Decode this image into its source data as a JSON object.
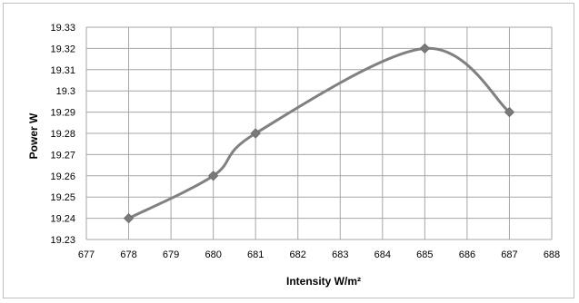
{
  "chart_data": {
    "type": "line",
    "title": "",
    "xlabel": "Intensity W/m²",
    "ylabel": "Power W",
    "xlim": [
      677,
      688
    ],
    "ylim": [
      19.23,
      19.33
    ],
    "x_ticks": [
      "677",
      "678",
      "679",
      "680",
      "681",
      "682",
      "683",
      "684",
      "685",
      "686",
      "687",
      "688"
    ],
    "y_ticks": [
      "19.23",
      "19.24",
      "19.25",
      "19.26",
      "19.27",
      "19.28",
      "19.29",
      "19.3",
      "19.31",
      "19.32",
      "19.33"
    ],
    "grid": true,
    "legend": "none",
    "smooth": true,
    "series": [
      {
        "color": "#808080",
        "marker": "diamond",
        "x": [
          678,
          680,
          681,
          685,
          687
        ],
        "y": [
          19.24,
          19.26,
          19.28,
          19.32,
          19.29
        ]
      }
    ]
  }
}
